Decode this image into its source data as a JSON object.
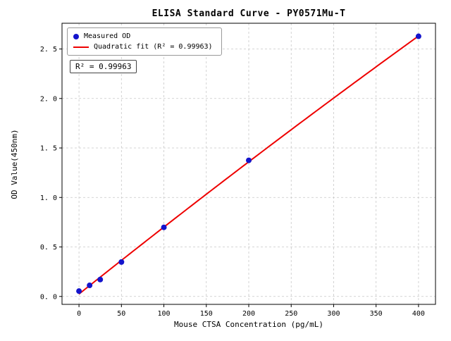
{
  "chart_data": {
    "type": "scatter",
    "title": "ELISA Standard Curve - PY0571Mu-T",
    "xlabel": "Mouse CTSA Concentration (pg/mL)",
    "ylabel": "OD Value(450nm)",
    "xlim": [
      -20,
      420
    ],
    "ylim": [
      -0.08,
      2.76
    ],
    "xticks": [
      0,
      50,
      100,
      150,
      200,
      250,
      300,
      350,
      400
    ],
    "yticks": [
      0.0,
      0.5,
      1.0,
      1.5,
      2.0,
      2.5
    ],
    "ytick_labels": [
      "0. 0",
      "0. 5",
      "1. 0",
      "1. 5",
      "2. 0",
      "2. 5"
    ],
    "grid": true,
    "legend_position": "upper left",
    "series": [
      {
        "name": "Measured OD",
        "type": "scatter",
        "color": "#1414cc",
        "x": [
          0,
          12.5,
          25,
          50,
          100,
          200,
          400
        ],
        "y": [
          0.054,
          0.112,
          0.171,
          0.348,
          0.698,
          1.375,
          2.628
        ]
      },
      {
        "name": "Quadratic fit (R² = 0.99963)",
        "type": "quadratic-fit",
        "color": "#ee0000"
      }
    ],
    "annotation": "R² = 0.99963",
    "r_squared": "0.99963",
    "grid_color": "#c8c8c8",
    "axis_color": "#000000"
  }
}
